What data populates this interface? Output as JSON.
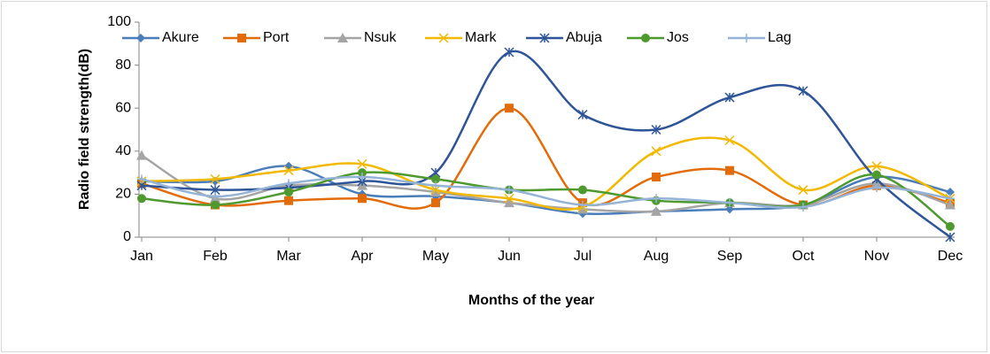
{
  "chart_data": {
    "type": "line",
    "smooth": true,
    "x_label": "Months of the year",
    "y_label": "Radio field strength(dB)",
    "categories": [
      "Jan",
      "Feb",
      "Mar",
      "Apr",
      "May",
      "Jun",
      "Jul",
      "Aug",
      "Sep",
      "Oct",
      "Nov",
      "Dec"
    ],
    "ylim": [
      0,
      100
    ],
    "yticks": [
      0,
      20,
      40,
      60,
      80,
      100
    ],
    "legend": "top",
    "series": [
      {
        "name": "Akure",
        "color": "#4a7ebb",
        "marker": "diamond",
        "values": [
          26,
          26,
          33,
          20,
          19,
          16,
          11,
          12,
          13,
          15,
          28,
          21
        ]
      },
      {
        "name": "Port",
        "color": "#e36c0a",
        "marker": "square",
        "values": [
          25,
          15,
          17,
          18,
          16,
          60,
          16,
          28,
          31,
          15,
          24,
          16
        ]
      },
      {
        "name": "Nsuk",
        "color": "#a5a5a5",
        "marker": "triangle",
        "values": [
          38,
          18,
          24,
          24,
          21,
          16,
          13,
          12,
          16,
          15,
          25,
          15
        ]
      },
      {
        "name": "Mark",
        "color": "#f2b900",
        "marker": "x",
        "values": [
          26,
          27,
          31,
          34,
          22,
          18,
          14,
          40,
          45,
          22,
          33,
          18
        ]
      },
      {
        "name": "Abuja",
        "color": "#2e5597",
        "marker": "star",
        "values": [
          24,
          22,
          23,
          26,
          30,
          86,
          57,
          50,
          65,
          68,
          27,
          0
        ]
      },
      {
        "name": "Jos",
        "color": "#4e9a2f",
        "marker": "circle",
        "values": [
          18,
          15,
          21,
          30,
          27,
          22,
          22,
          17,
          16,
          15,
          29,
          5
        ]
      },
      {
        "name": "Lag",
        "color": "#95b3d7",
        "marker": "plus",
        "values": [
          27,
          19,
          25,
          28,
          24,
          22,
          15,
          18,
          16,
          14,
          23,
          18
        ]
      }
    ]
  }
}
